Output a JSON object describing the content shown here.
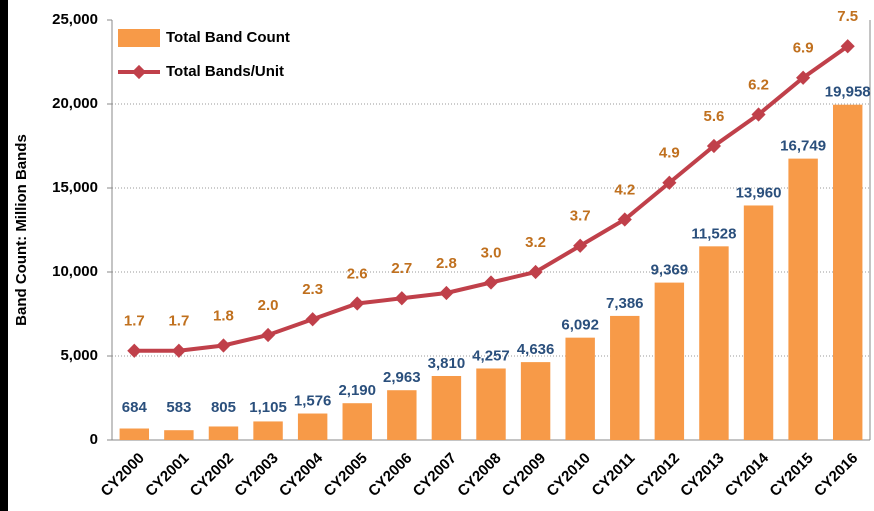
{
  "chart_data": {
    "type": "bar-line",
    "y_label": "Band Count: Million Bands",
    "categories": [
      "CY2000",
      "CY2001",
      "CY2002",
      "CY2003",
      "CY2004",
      "CY2005",
      "CY2006",
      "CY2007",
      "CY2008",
      "CY2009",
      "CY2010",
      "CY2011",
      "CY2012",
      "CY2013",
      "CY2014",
      "CY2015",
      "CY2016"
    ],
    "series": [
      {
        "name": "Total Band Count",
        "color": "#f79a48",
        "type": "bar",
        "values": [
          684,
          583,
          805,
          1105,
          1576,
          2190,
          2963,
          3810,
          4257,
          4636,
          6092,
          7386,
          9369,
          11528,
          13960,
          16749,
          19958
        ],
        "value_labels": [
          "684",
          "583",
          "805",
          "1,105",
          "1,576",
          "2,190",
          "2,963",
          "3,810",
          "4,257",
          "4,636",
          "6,092",
          "7,386",
          "9,369",
          "11,528",
          "13,960",
          "16,749",
          "19,958"
        ]
      },
      {
        "name": "Total Bands/Unit",
        "color": "#c0404a",
        "type": "line",
        "axis": "y2",
        "values": [
          1.7,
          1.7,
          1.8,
          2.0,
          2.3,
          2.6,
          2.7,
          2.8,
          3.0,
          3.2,
          3.7,
          4.2,
          4.9,
          5.6,
          6.2,
          6.9,
          7.5
        ],
        "value_labels": [
          "1.7",
          "1.7",
          "1.8",
          "2.0",
          "2.3",
          "2.6",
          "2.7",
          "2.8",
          "3.0",
          "3.2",
          "3.7",
          "4.2",
          "4.9",
          "5.6",
          "6.2",
          "6.9",
          "7.5"
        ]
      }
    ],
    "ylim": [
      0,
      25000
    ],
    "yticks": [
      0,
      {
        "value": 5000,
        "label": "5,000"
      },
      {
        "value": 10000,
        "label": "10,000"
      },
      {
        "value": 15000,
        "label": "15,000"
      },
      {
        "value": 20000,
        "label": "20,000"
      },
      {
        "value": 25000,
        "label": "25,000"
      }
    ],
    "y2lim": [
      0,
      8
    ],
    "grid": true,
    "legend": "upper left"
  }
}
